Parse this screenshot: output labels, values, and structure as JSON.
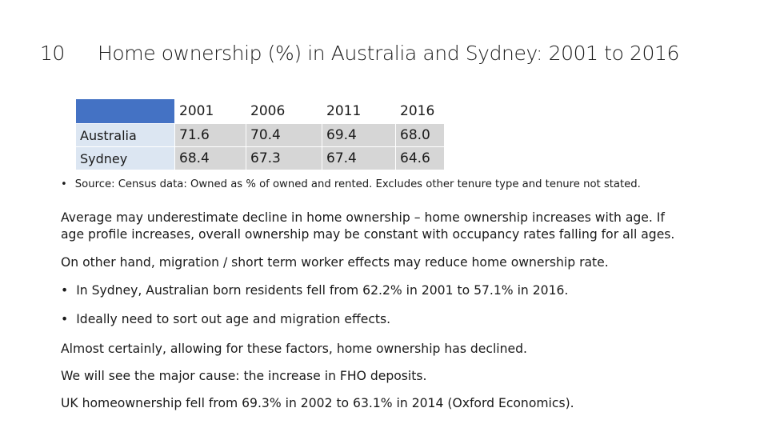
{
  "slide": {
    "number": "10",
    "title": "Home ownership (%) in Australia and Sydney: 2001 to 2016"
  },
  "table": {
    "years": [
      "2001",
      "2006",
      "2011",
      "2016"
    ],
    "rows": [
      {
        "label": "Australia",
        "values": [
          "71.6",
          "70.4",
          "69.4",
          "68.0"
        ]
      },
      {
        "label": "Sydney",
        "values": [
          "68.4",
          "67.3",
          "67.4",
          "64.6"
        ]
      }
    ],
    "header_color": "#4472c4",
    "row_label_color": "#dce6f2",
    "cell_color": "#d6d6d6"
  },
  "source_note": "Source: Census data: Owned as % of owned and rented. Excludes other tenure type and tenure not stated.",
  "bullet_glyph": "•",
  "paragraphs": {
    "p1_line1": "Average may underestimate decline in home ownership – home ownership increases with age.  If",
    "p1_line2": "age profile increases, overall ownership may be constant with occupancy rates falling for all ages.",
    "p2": "On other hand, migration / short term worker effects may reduce home ownership rate.",
    "b1": "In Sydney, Australian born residents fell from 62.2% in 2001 to 57.1% in 2016.",
    "b2": "Ideally need to sort out age and migration effects.",
    "p3": "Almost certainly, allowing for these factors, home ownership has declined.",
    "p4": "We will see the major cause: the increase in FHO deposits.",
    "p5": "UK homeownership fell from 69.3% in 2002 to 63.1% in 2014 (Oxford Economics)."
  }
}
